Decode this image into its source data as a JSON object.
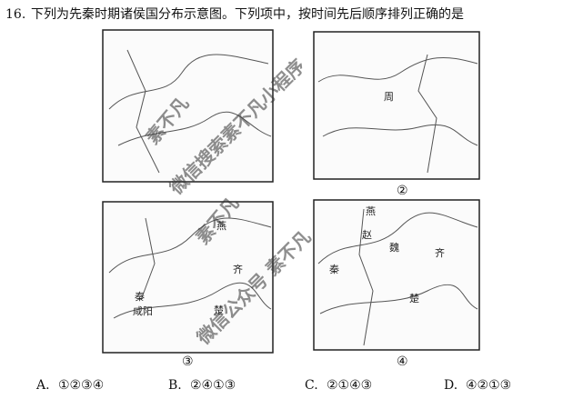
{
  "question": {
    "number": "16.",
    "text": "下列为先秦时期诸侯国分布示意图。下列项中，按时间先后顺序排列正确的是"
  },
  "maps": [
    {},
    {
      "caption": "②",
      "places": [
        "周"
      ]
    },
    {
      "caption": "③",
      "places": [
        "燕",
        "齐",
        "秦",
        "咸阳",
        "楚"
      ]
    },
    {
      "caption": "④",
      "places": [
        "燕",
        "赵",
        "魏",
        "齐",
        "秦",
        "楚"
      ]
    }
  ],
  "options": [
    {
      "letter": "A.",
      "text": "①②③④"
    },
    {
      "letter": "B.",
      "text": "②④①③"
    },
    {
      "letter": "C.",
      "text": "②①④③"
    },
    {
      "letter": "D.",
      "text": "④②①③"
    }
  ],
  "watermarks": [
    "素不凡",
    "微信搜索素不凡小程序",
    "素不凡",
    "微信公众号 素不凡"
  ]
}
